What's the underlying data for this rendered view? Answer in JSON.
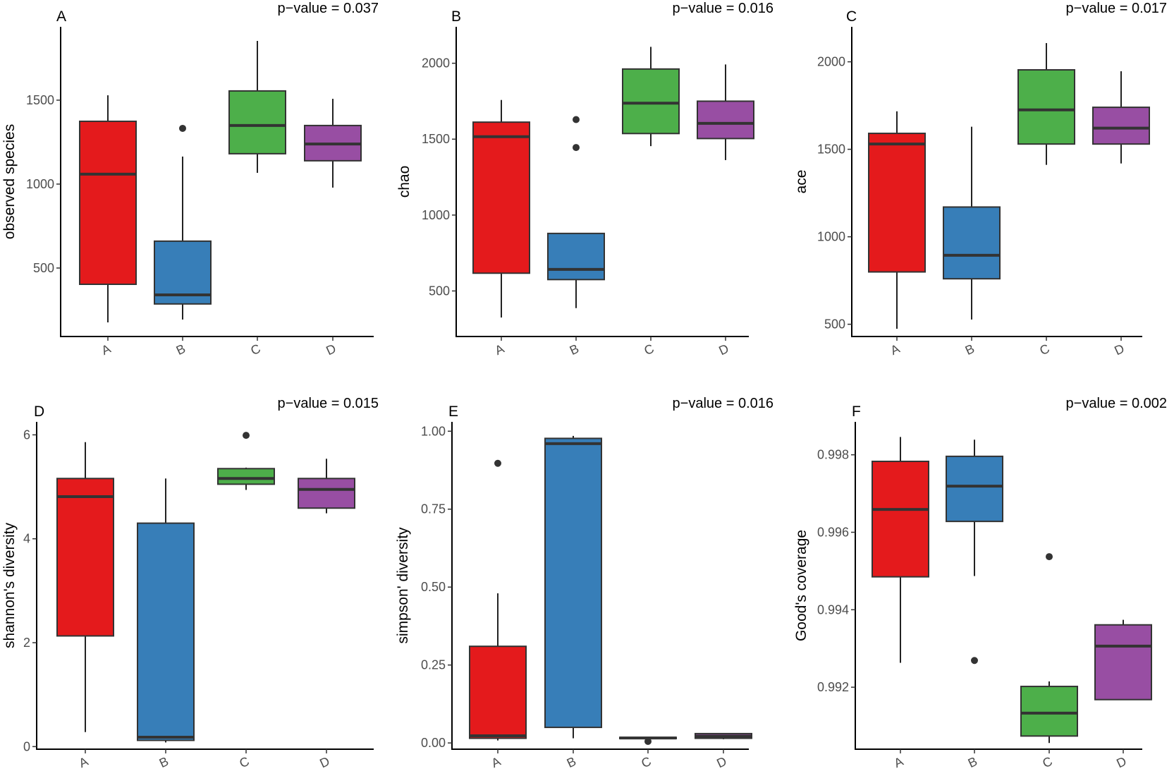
{
  "chart_data": [
    {
      "type": "box",
      "panel": "A",
      "title": "p−value = 0.037",
      "xlabel": "",
      "ylabel": "observed species",
      "categories": [
        "A",
        "B",
        "C",
        "D"
      ],
      "yticks": [
        500,
        1000,
        1500
      ],
      "ytick_labels": [
        "500",
        "1000",
        "1500"
      ],
      "ylim": [
        92,
        1937
      ],
      "grid": false,
      "series": [
        {
          "name": "A",
          "whisker_low": 176,
          "q1": 403,
          "median": 1059,
          "q3": 1374,
          "whisker_high": 1529,
          "outliers": []
        },
        {
          "name": "B",
          "whisker_low": 193,
          "q1": 286,
          "median": 340,
          "q3": 660,
          "whisker_high": 1164,
          "outliers": [
            1332
          ]
        },
        {
          "name": "C",
          "whisker_low": 1067,
          "q1": 1181,
          "median": 1349,
          "q3": 1555,
          "whisker_high": 1853,
          "outliers": []
        },
        {
          "name": "D",
          "whisker_low": 979,
          "q1": 1139,
          "median": 1239,
          "q3": 1349,
          "whisker_high": 1508,
          "outliers": []
        }
      ]
    },
    {
      "type": "box",
      "panel": "B",
      "title": "p−value = 0.016",
      "xlabel": "",
      "ylabel": "chao",
      "categories": [
        "A",
        "B",
        "C",
        "D"
      ],
      "yticks": [
        500,
        1000,
        1500,
        2000
      ],
      "ytick_labels": [
        "500",
        "1000",
        "1500",
        "2000"
      ],
      "ylim": [
        200,
        2240
      ],
      "grid": false,
      "series": [
        {
          "name": "A",
          "whisker_low": 325,
          "q1": 617,
          "median": 1516,
          "q3": 1612,
          "whisker_high": 1758,
          "outliers": []
        },
        {
          "name": "B",
          "whisker_low": 387,
          "q1": 575,
          "median": 642,
          "q3": 879,
          "whisker_high": 879,
          "outliers": [
            1445,
            1629
          ]
        },
        {
          "name": "C",
          "whisker_low": 1454,
          "q1": 1537,
          "median": 1737,
          "q3": 1962,
          "whisker_high": 2108,
          "outliers": []
        },
        {
          "name": "D",
          "whisker_low": 1362,
          "q1": 1504,
          "median": 1604,
          "q3": 1750,
          "whisker_high": 1992,
          "outliers": []
        }
      ]
    },
    {
      "type": "box",
      "panel": "C",
      "title": "p−value = 0.017",
      "xlabel": "",
      "ylabel": "ace",
      "categories": [
        "A",
        "B",
        "C",
        "D"
      ],
      "yticks": [
        500,
        1000,
        1500,
        2000
      ],
      "ytick_labels": [
        "500",
        "1000",
        "1500",
        "2000"
      ],
      "ylim": [
        430,
        2200
      ],
      "grid": false,
      "series": [
        {
          "name": "A",
          "whisker_low": 474,
          "q1": 799,
          "median": 1530,
          "q3": 1591,
          "whisker_high": 1717,
          "outliers": []
        },
        {
          "name": "B",
          "whisker_low": 527,
          "q1": 760,
          "median": 894,
          "q3": 1170,
          "whisker_high": 1629,
          "outliers": []
        },
        {
          "name": "C",
          "whisker_low": 1411,
          "q1": 1530,
          "median": 1725,
          "q3": 1954,
          "whisker_high": 2107,
          "outliers": []
        },
        {
          "name": "D",
          "whisker_low": 1419,
          "q1": 1530,
          "median": 1621,
          "q3": 1740,
          "whisker_high": 1946,
          "outliers": []
        }
      ]
    },
    {
      "type": "box",
      "panel": "D",
      "title": "p−value = 0.015",
      "xlabel": "",
      "ylabel": "shannon's diversity",
      "categories": [
        "A",
        "B",
        "C",
        "D"
      ],
      "yticks": [
        0,
        2,
        4,
        6
      ],
      "ytick_labels": [
        "0",
        "2",
        "4",
        "6"
      ],
      "ylim": [
        -0.05,
        6.25
      ],
      "grid": false,
      "series": [
        {
          "name": "A",
          "whisker_low": 0.28,
          "q1": 2.13,
          "median": 4.81,
          "q3": 5.16,
          "whisker_high": 5.86,
          "outliers": []
        },
        {
          "name": "B",
          "whisker_low": 0.08,
          "q1": 0.12,
          "median": 0.18,
          "q3": 4.3,
          "whisker_high": 5.16,
          "outliers": []
        },
        {
          "name": "C",
          "whisker_low": 4.94,
          "q1": 5.05,
          "median": 5.16,
          "q3": 5.35,
          "whisker_high": 5.37,
          "outliers": [
            5.99
          ]
        },
        {
          "name": "D",
          "whisker_low": 4.49,
          "q1": 4.59,
          "median": 4.95,
          "q3": 5.16,
          "whisker_high": 5.54,
          "outliers": []
        }
      ]
    },
    {
      "type": "box",
      "panel": "E",
      "title": "p−value = 0.016",
      "xlabel": "",
      "ylabel": "simpson' diversity",
      "categories": [
        "A",
        "B",
        "C",
        "D"
      ],
      "yticks": [
        0.0,
        0.25,
        0.5,
        0.75,
        1.0
      ],
      "ytick_labels": [
        "0.00",
        "0.25",
        "0.50",
        "0.75",
        "1.00"
      ],
      "ylim": [
        -0.02,
        1.03
      ],
      "grid": false,
      "series": [
        {
          "name": "A",
          "whisker_low": 0.008,
          "q1": 0.015,
          "median": 0.023,
          "q3": 0.31,
          "whisker_high": 0.48,
          "outliers": [
            0.897
          ]
        },
        {
          "name": "B",
          "whisker_low": 0.015,
          "q1": 0.05,
          "median": 0.96,
          "q3": 0.977,
          "whisker_high": 0.985,
          "outliers": []
        },
        {
          "name": "C",
          "whisker_low": 0.013,
          "q1": 0.014,
          "median": 0.016,
          "q3": 0.018,
          "whisker_high": 0.019,
          "outliers": [
            0.005
          ]
        },
        {
          "name": "D",
          "whisker_low": 0.012,
          "q1": 0.015,
          "median": 0.022,
          "q3": 0.03,
          "whisker_high": 0.032,
          "outliers": []
        }
      ]
    },
    {
      "type": "box",
      "panel": "F",
      "title": "p−value = 0.002",
      "xlabel": "",
      "ylabel": "Good's coverage",
      "categories": [
        "A",
        "B",
        "C",
        "D"
      ],
      "yticks": [
        0.992,
        0.994,
        0.996,
        0.998
      ],
      "ytick_labels": [
        "0.992",
        "0.994",
        "0.996",
        "0.998"
      ],
      "ylim": [
        0.9904,
        0.99885
      ],
      "grid": false,
      "series": [
        {
          "name": "A",
          "whisker_low": 0.99263,
          "q1": 0.99485,
          "median": 0.99659,
          "q3": 0.99783,
          "whisker_high": 0.99846,
          "outliers": []
        },
        {
          "name": "B",
          "whisker_low": 0.99487,
          "q1": 0.99628,
          "median": 0.99719,
          "q3": 0.99796,
          "whisker_high": 0.99839,
          "outliers": [
            0.99269
          ]
        },
        {
          "name": "C",
          "whisker_low": 0.99056,
          "q1": 0.99074,
          "median": 0.99133,
          "q3": 0.99202,
          "whisker_high": 0.99215,
          "outliers": [
            0.99537
          ]
        },
        {
          "name": "D",
          "whisker_low": 0.99178,
          "q1": 0.99168,
          "median": 0.99306,
          "q3": 0.99361,
          "whisker_high": 0.99374,
          "outliers": []
        }
      ]
    }
  ],
  "colors": {
    "A": "#e41a1c",
    "B": "#377eb8",
    "C": "#4daf4a",
    "D": "#984ea3",
    "outline": "#333333"
  }
}
